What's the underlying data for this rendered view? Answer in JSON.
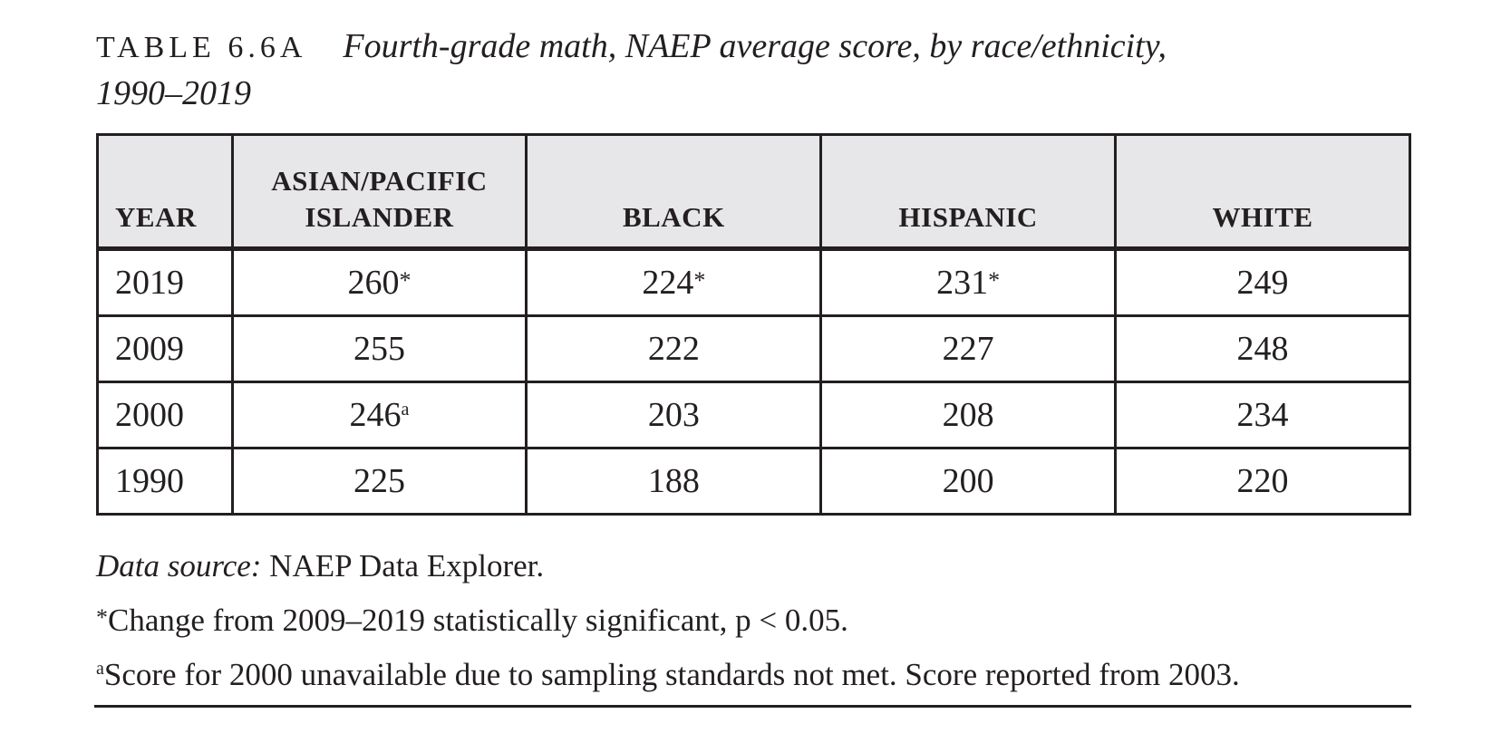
{
  "title": {
    "label": "TABLE 6.6A",
    "caption_line1": "Fourth-grade math, NAEP average score, by race/ethnicity,",
    "caption_line2": "1990–2019"
  },
  "table": {
    "columns": [
      "YEAR",
      "ASIAN/PACIFIC",
      "ISLANDER",
      "BLACK",
      "HISPANIC",
      "WHITE"
    ],
    "rows": [
      {
        "year": "2019",
        "asian": "260",
        "asian_mark": "*",
        "black": "224",
        "black_mark": "*",
        "hispanic": "231",
        "hispanic_mark": "*",
        "white": "249"
      },
      {
        "year": "2009",
        "asian": "255",
        "asian_mark": "",
        "black": "222",
        "black_mark": "",
        "hispanic": "227",
        "hispanic_mark": "",
        "white": "248"
      },
      {
        "year": "2000",
        "asian": "246",
        "asian_mark": "a",
        "black": "203",
        "black_mark": "",
        "hispanic": "208",
        "hispanic_mark": "",
        "white": "234"
      },
      {
        "year": "1990",
        "asian": "225",
        "asian_mark": "",
        "black": "188",
        "black_mark": "",
        "hispanic": "200",
        "hispanic_mark": "",
        "white": "220"
      }
    ]
  },
  "notes": {
    "source_label": "Data source:",
    "source_text": " NAEP Data Explorer.",
    "significance_mark": "*",
    "significance_text": "Change from 2009–2019 statistically significant, p < 0.05.",
    "footnote_mark": "a",
    "footnote_text": "Score for 2000 unavailable due to sampling standards not met. Score reported from 2003."
  }
}
